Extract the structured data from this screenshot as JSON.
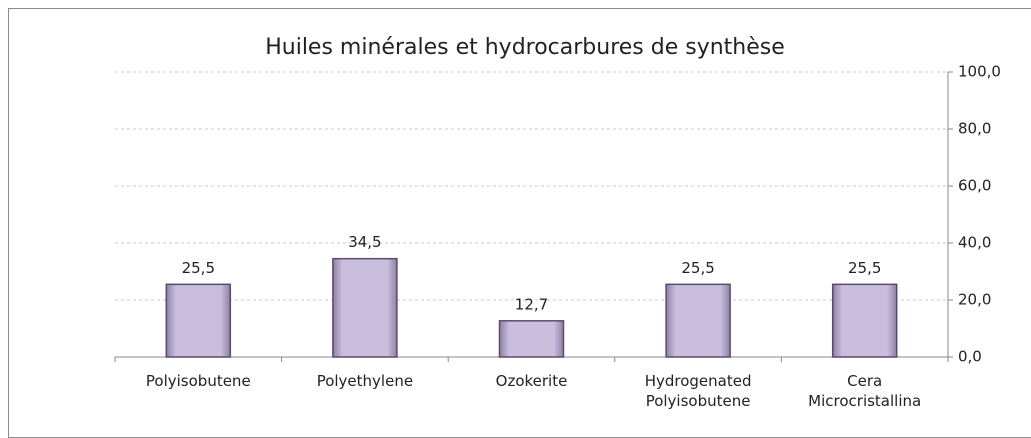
{
  "chart_data": {
    "type": "bar",
    "title": "Huiles minérales et hydrocarbures de synthèse",
    "categories": [
      "Polyisobutene",
      "Polyethylene",
      "Ozokerite",
      "Hydrogenated Polyisobutene",
      "Cera Microcristallina"
    ],
    "values": [
      25.5,
      34.5,
      12.7,
      25.5,
      25.5
    ],
    "value_labels": [
      "25,5",
      "34,5",
      "12,7",
      "25,5",
      "25,5"
    ],
    "color": "#c9bfdc",
    "ylim": [
      0,
      100
    ],
    "yticks": [
      {
        "value": 0,
        "label": "0,0"
      },
      {
        "value": 20,
        "label": "20,0"
      },
      {
        "value": 40,
        "label": "40,0"
      },
      {
        "value": 60,
        "label": "60,0"
      },
      {
        "value": 80,
        "label": "80,0"
      },
      {
        "value": 100,
        "label": "100,0"
      }
    ],
    "grid": true,
    "y_axis_side": "right"
  }
}
